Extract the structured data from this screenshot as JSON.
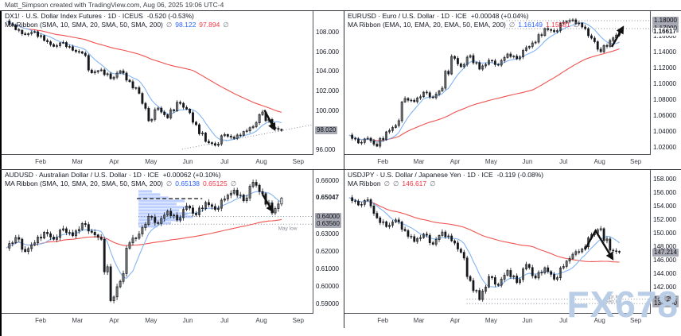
{
  "attribution": "Matt_Simpson created with TradingView.com, Aug 06, 2025 19:06 UTC-4",
  "watermark": "FX678",
  "months": [
    "Feb",
    "Mar",
    "Apr",
    "May",
    "Jun",
    "Jul",
    "Aug",
    "Sep"
  ],
  "colors": {
    "candle": "#16181d",
    "candle_up_fill": "#ffffff",
    "ma_fast_blue": "#82b4f2",
    "ma_slow_red": "#ef5350",
    "dotted_level": "#8a8e99",
    "chip_bg": "#a7aab4",
    "volume_profile": "rgba(41,98,255,0.30)",
    "arrow": "#111111",
    "indicator_blue": "#2962ff",
    "indicator_red": "#f23645"
  },
  "chart_data": [
    {
      "id": "dxy",
      "type": "candlestick",
      "title": "DX1! · U.S. Dollar Index Futures · 1D · ICEUS",
      "change": "-0.520 (-0.53%)",
      "indicator_parts": [
        {
          "t": "MA Ribbon (SMA, 10, SMA, 20, SMA, 50, SMA, 200)",
          "c": "dark"
        },
        {
          "t": "∅",
          "c": "gray"
        },
        {
          "t": "98.122",
          "c": "blue"
        },
        {
          "t": "97.894",
          "c": "red"
        },
        {
          "t": "∅",
          "c": "gray"
        }
      ],
      "ylim": [
        95.6,
        110.2
      ],
      "closes": [
        109.2,
        108.3,
        107.8,
        108.1,
        107.2,
        106.6,
        107.0,
        106.2,
        105.9,
        103.9,
        104.2,
        103.3,
        104.1,
        103.0,
        101.8,
        99.0,
        100.3,
        99.3,
        100.9,
        100.2,
        98.6,
        96.9,
        96.5,
        97.6,
        97.2,
        97.9,
        98.4,
        99.9,
        98.3,
        98.02
      ],
      "axis_labels": [
        {
          "label": "108.000",
          "value": 108.0,
          "style": "plain"
        },
        {
          "label": "106.000",
          "value": 106.0,
          "style": "plain"
        },
        {
          "label": "104.000",
          "value": 104.0,
          "style": "plain"
        },
        {
          "label": "102.000",
          "value": 102.0,
          "style": "plain"
        },
        {
          "label": "100.000",
          "value": 100.0,
          "style": "plain"
        },
        {
          "label": "96.000",
          "value": 96.0,
          "style": "plain"
        },
        {
          "label": "98.020",
          "value": 98.02,
          "style": "chip"
        }
      ],
      "annotations": {
        "trend": [
          {
            "p": [
              [
                0.58,
                96.1
              ],
              [
                1.0,
                98.6
              ]
            ]
          }
        ],
        "arrows": [
          {
            "p": [
              [
                0.845,
                100.1
              ],
              [
                0.878,
                98.1
              ]
            ]
          }
        ]
      }
    },
    {
      "id": "eurusd",
      "type": "candlestick",
      "title": "EURUSD · Euro / U.S. Dollar · 1D · ICE",
      "change": "+0.00048 (+0.04%)",
      "indicator_parts": [
        {
          "t": "MA Ribbon (EMA, 10, EMA, 20, EMA, 50, EMA, 200)",
          "c": "dark"
        },
        {
          "t": "∅",
          "c": "gray"
        },
        {
          "t": "1.16149",
          "c": "blue"
        },
        {
          "t": "1.15581",
          "c": "red"
        },
        {
          "t": "∅",
          "c": "gray"
        }
      ],
      "ylim": [
        1.012,
        1.192
      ],
      "closes": [
        1.036,
        1.026,
        1.032,
        1.022,
        1.04,
        1.048,
        1.082,
        1.078,
        1.09,
        1.083,
        1.095,
        1.135,
        1.122,
        1.136,
        1.119,
        1.13,
        1.124,
        1.138,
        1.132,
        1.146,
        1.153,
        1.17,
        1.166,
        1.178,
        1.181,
        1.172,
        1.158,
        1.141,
        1.155,
        1.16617
      ],
      "axis_labels": [
        {
          "label": "1.16000",
          "value": 1.16,
          "style": "plain"
        },
        {
          "label": "1.14000",
          "value": 1.14,
          "style": "plain"
        },
        {
          "label": "1.12000",
          "value": 1.12,
          "style": "plain"
        },
        {
          "label": "1.10000",
          "value": 1.1,
          "style": "plain"
        },
        {
          "label": "1.08000",
          "value": 1.08,
          "style": "plain"
        },
        {
          "label": "1.06000",
          "value": 1.06,
          "style": "plain"
        },
        {
          "label": "1.04000",
          "value": 1.04,
          "style": "plain"
        },
        {
          "label": "1.02000",
          "value": 1.02,
          "style": "plain"
        },
        {
          "label": "1.18000",
          "value": 1.18,
          "style": "chip"
        },
        {
          "label": "1.17000",
          "value": 1.17,
          "style": "chip"
        },
        {
          "label": "1.16617",
          "value": 1.16617,
          "style": "current"
        }
      ],
      "annotations": {
        "hlines": [
          {
            "v": 1.18,
            "x0": 0.53
          },
          {
            "v": 1.17,
            "x0": 0.53
          }
        ],
        "arrows": [
          {
            "p": [
              [
                0.875,
                1.147
              ],
              [
                0.912,
                1.172
              ]
            ]
          }
        ]
      }
    },
    {
      "id": "audusd",
      "type": "candlestick",
      "title": "AUDUSD · Australian Dollar / U.S. Dollar · 1D · ICE",
      "change": "+0.00062 (+0.10%)",
      "indicator_parts": [
        {
          "t": "MA Ribbon (SMA, 10, SMA, 20, SMA, 50, SMA, 200)",
          "c": "dark"
        },
        {
          "t": "∅",
          "c": "gray"
        },
        {
          "t": "0.65138",
          "c": "blue"
        },
        {
          "t": "0.65125",
          "c": "red"
        },
        {
          "t": "∅",
          "c": "gray"
        }
      ],
      "ylim": [
        0.585,
        0.6665
      ],
      "closes": [
        0.622,
        0.628,
        0.62,
        0.625,
        0.631,
        0.627,
        0.633,
        0.629,
        0.636,
        0.631,
        0.627,
        0.592,
        0.603,
        0.625,
        0.63,
        0.64,
        0.636,
        0.643,
        0.638,
        0.646,
        0.641,
        0.648,
        0.644,
        0.65,
        0.655,
        0.649,
        0.6595,
        0.653,
        0.642,
        0.65047
      ],
      "axis_labels": [
        {
          "label": "0.66000",
          "value": 0.66,
          "style": "plain"
        },
        {
          "label": "0.63000",
          "value": 0.63,
          "style": "plain"
        },
        {
          "label": "0.62000",
          "value": 0.62,
          "style": "plain"
        },
        {
          "label": "0.61000",
          "value": 0.61,
          "style": "plain"
        },
        {
          "label": "0.60000",
          "value": 0.6,
          "style": "plain"
        },
        {
          "label": "0.59000",
          "value": 0.59,
          "style": "plain"
        },
        {
          "label": "0.64000",
          "value": 0.64,
          "style": "chip"
        },
        {
          "label": "0.63560",
          "value": 0.6356,
          "style": "chip"
        },
        {
          "label": "0.65047",
          "value": 0.65047,
          "style": "current"
        }
      ],
      "annotations": {
        "hlines": [
          {
            "v": 0.64,
            "x0": 0.44
          },
          {
            "v": 0.6356,
            "x0": 0.44
          }
        ],
        "dash": [
          {
            "v": 0.6502,
            "x0": 0.435,
            "x1": 0.645
          }
        ],
        "profile": {
          "x0": 0.44,
          "x1": 0.615,
          "v0": 0.6335,
          "v1": 0.6552,
          "rows": [
            0.35,
            0.6,
            0.8,
            1.0,
            0.9,
            0.75,
            0.95,
            0.7,
            0.85,
            0.55,
            0.4,
            0.25
          ]
        },
        "arrows": [
          {
            "p": [
              [
                0.838,
                0.6528
              ],
              [
                0.872,
                0.6428
              ]
            ]
          }
        ],
        "texts": [
          {
            "x": 0.95,
            "v": 0.6337,
            "s": "May low"
          }
        ]
      }
    },
    {
      "id": "usdjpy",
      "type": "candlestick",
      "title": "USDJPY · U.S. Dollar / Japanese Yen · 1D · ICE",
      "change": "-0.119 (-0.08%)",
      "indicator_parts": [
        {
          "t": "MA Ribbon",
          "c": "dark"
        },
        {
          "t": "∅",
          "c": "gray"
        },
        {
          "t": "∅",
          "c": "gray"
        },
        {
          "t": "146.617",
          "c": "red"
        },
        {
          "t": "∅",
          "c": "gray"
        }
      ],
      "ylim": [
        138.2,
        159.4
      ],
      "closes": [
        155.3,
        154.2,
        155.0,
        152.3,
        151.0,
        152.0,
        150.4,
        148.8,
        149.9,
        148.4,
        150.2,
        148.9,
        147.2,
        143.0,
        140.2,
        143.6,
        142.3,
        144.5,
        142.7,
        145.4,
        143.4,
        144.9,
        143.2,
        145.1,
        146.9,
        147.7,
        149.8,
        150.7,
        147.5,
        147.214
      ],
      "axis_labels": [
        {
          "label": "158.000",
          "value": 158.0,
          "style": "plain"
        },
        {
          "label": "156.000",
          "value": 156.0,
          "style": "plain"
        },
        {
          "label": "154.000",
          "value": 154.0,
          "style": "plain"
        },
        {
          "label": "152.000",
          "value": 152.0,
          "style": "plain"
        },
        {
          "label": "150.000",
          "value": 150.0,
          "style": "plain"
        },
        {
          "label": "148.000",
          "value": 148.0,
          "style": "plain"
        },
        {
          "label": "146.000",
          "value": 146.0,
          "style": "plain"
        },
        {
          "label": "144.000",
          "value": 144.0,
          "style": "plain"
        },
        {
          "label": "142.000",
          "value": 142.0,
          "style": "plain"
        },
        {
          "label": "147.214",
          "value": 147.214,
          "style": "chip"
        },
        {
          "label": "140.255",
          "value": 140.255,
          "style": "chip"
        },
        {
          "label": "139.580",
          "value": 139.58,
          "style": "chip"
        }
      ],
      "annotations": {
        "hlines": [
          {
            "v": 140.255,
            "x0": 0.4
          },
          {
            "v": 139.58,
            "x0": 0.4
          }
        ],
        "arrows": [
          {
            "p": [
              [
                0.787,
                147.6
              ],
              [
                0.822,
                150.4
              ],
              [
                0.878,
                146.2
              ]
            ]
          }
        ],
        "texts": [
          {
            "x": 0.9,
            "v": 140.75,
            "s": "Apr lo"
          },
          {
            "x": 0.9,
            "v": 140.0,
            "s": "Sep lo"
          }
        ]
      }
    }
  ]
}
